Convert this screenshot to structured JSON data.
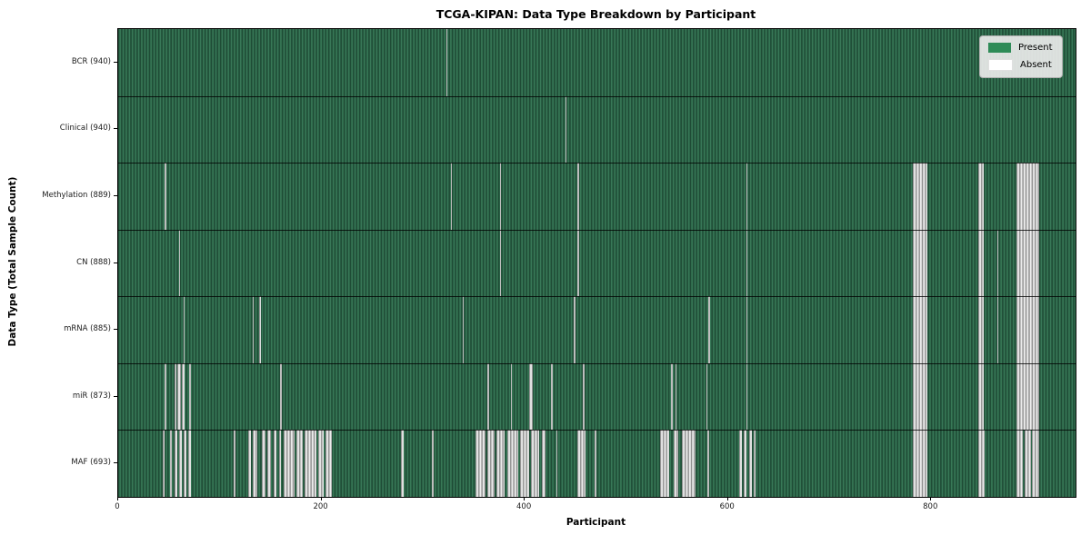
{
  "chart_data": {
    "type": "heatmap",
    "title": "TCGA-KIPAN: Data Type Breakdown by Participant",
    "xlabel": "Participant",
    "ylabel": "Data Type (Total Sample Count)",
    "x_range": [
      0,
      942
    ],
    "x_ticks": [
      0,
      200,
      400,
      600,
      800
    ],
    "n_participants": 940,
    "grid": false,
    "legend_position": "upper right",
    "colors": {
      "present": "#2e8b57",
      "absent": "#ffffff",
      "absent_render": "#d9d9d9"
    },
    "legend": [
      {
        "label": "Present",
        "color": "#2e8b57"
      },
      {
        "label": "Absent",
        "color": "#ffffff"
      }
    ],
    "rows": [
      {
        "label": "BCR (940)",
        "data_type": "BCR",
        "present_count": 940,
        "absent_segments": [
          [
            323,
            323.9
          ]
        ]
      },
      {
        "label": "Clinical (940)",
        "data_type": "Clinical",
        "present_count": 940,
        "absent_segments": [
          [
            440,
            440.9
          ]
        ]
      },
      {
        "label": "Methylation (889)",
        "data_type": "Methylation",
        "present_count": 889,
        "absent_segments": [
          [
            46,
            47
          ],
          [
            327,
            328.5
          ],
          [
            375.5,
            376.7
          ],
          [
            452,
            453.2
          ],
          [
            617.8,
            618.8
          ],
          [
            782,
            796.5
          ],
          [
            846,
            852
          ],
          [
            884,
            906.5
          ]
        ]
      },
      {
        "label": "CN (888)",
        "data_type": "CN",
        "present_count": 888,
        "absent_segments": [
          [
            59.5,
            61
          ],
          [
            375.5,
            376.7
          ],
          [
            452,
            453.2
          ],
          [
            617.8,
            618.6
          ],
          [
            782,
            796.5
          ],
          [
            846,
            852
          ],
          [
            864.8,
            865.8
          ],
          [
            884,
            906.5
          ]
        ]
      },
      {
        "label": "mRNA (885)",
        "data_type": "mRNA",
        "present_count": 885,
        "absent_segments": [
          [
            64,
            65.2
          ],
          [
            132,
            133.5
          ],
          [
            138.5,
            140.5
          ],
          [
            339,
            340
          ],
          [
            448.5,
            449.7
          ],
          [
            580.8,
            582.5
          ],
          [
            617.8,
            618.6
          ],
          [
            782,
            796.5
          ],
          [
            846,
            852
          ],
          [
            864.8,
            865.8
          ],
          [
            884,
            906.5
          ]
        ]
      },
      {
        "label": "miR (873)",
        "data_type": "miR",
        "present_count": 873,
        "absent_segments": [
          [
            46,
            47.5
          ],
          [
            55.5,
            57.5
          ],
          [
            58.5,
            61.5
          ],
          [
            63,
            65.5
          ],
          [
            70,
            71.5
          ],
          [
            159.5,
            161
          ],
          [
            363.5,
            364.8
          ],
          [
            386.5,
            387.8
          ],
          [
            404,
            407.5
          ],
          [
            426,
            427.5
          ],
          [
            457.5,
            459
          ],
          [
            544,
            545.5
          ],
          [
            548,
            549.5
          ],
          [
            578.5,
            579.8
          ],
          [
            617.8,
            618.6
          ],
          [
            782,
            796.5
          ],
          [
            846,
            852
          ],
          [
            884,
            906.5
          ]
        ]
      },
      {
        "label": "MAF (693)",
        "data_type": "MAF",
        "present_count": 693,
        "absent_segments": [
          [
            43.5,
            45.5
          ],
          [
            51,
            52.5
          ],
          [
            55.5,
            58
          ],
          [
            59.5,
            62.5
          ],
          [
            64.5,
            67.5
          ],
          [
            69,
            71.5
          ],
          [
            114,
            115.5
          ],
          [
            128,
            130.5
          ],
          [
            132,
            136.5
          ],
          [
            141,
            144.5
          ],
          [
            147,
            150.5
          ],
          [
            153,
            156
          ],
          [
            158,
            160.5
          ],
          [
            163,
            174
          ],
          [
            175,
            182
          ],
          [
            183.5,
            195
          ],
          [
            196.5,
            202.5
          ],
          [
            204,
            210.5
          ],
          [
            278,
            280.5
          ],
          [
            309,
            310.5
          ],
          [
            352,
            361.5
          ],
          [
            363,
            370.5
          ],
          [
            372,
            380.5
          ],
          [
            382.5,
            393.5
          ],
          [
            395.5,
            404.5
          ],
          [
            406.5,
            414.5
          ],
          [
            416.5,
            420.5
          ],
          [
            431,
            432.5
          ],
          [
            452,
            459.5
          ],
          [
            469,
            470.5
          ],
          [
            533,
            542.5
          ],
          [
            546.5,
            551.5
          ],
          [
            555,
            568.5
          ],
          [
            580,
            581.5
          ],
          [
            611,
            613.5
          ],
          [
            615.5,
            618.5
          ],
          [
            620.5,
            623.5
          ],
          [
            625,
            627.5
          ],
          [
            782,
            796.5
          ],
          [
            846,
            852.5
          ],
          [
            884,
            890.5
          ],
          [
            891.5,
            898.5
          ],
          [
            899.5,
            906.5
          ]
        ]
      }
    ]
  }
}
